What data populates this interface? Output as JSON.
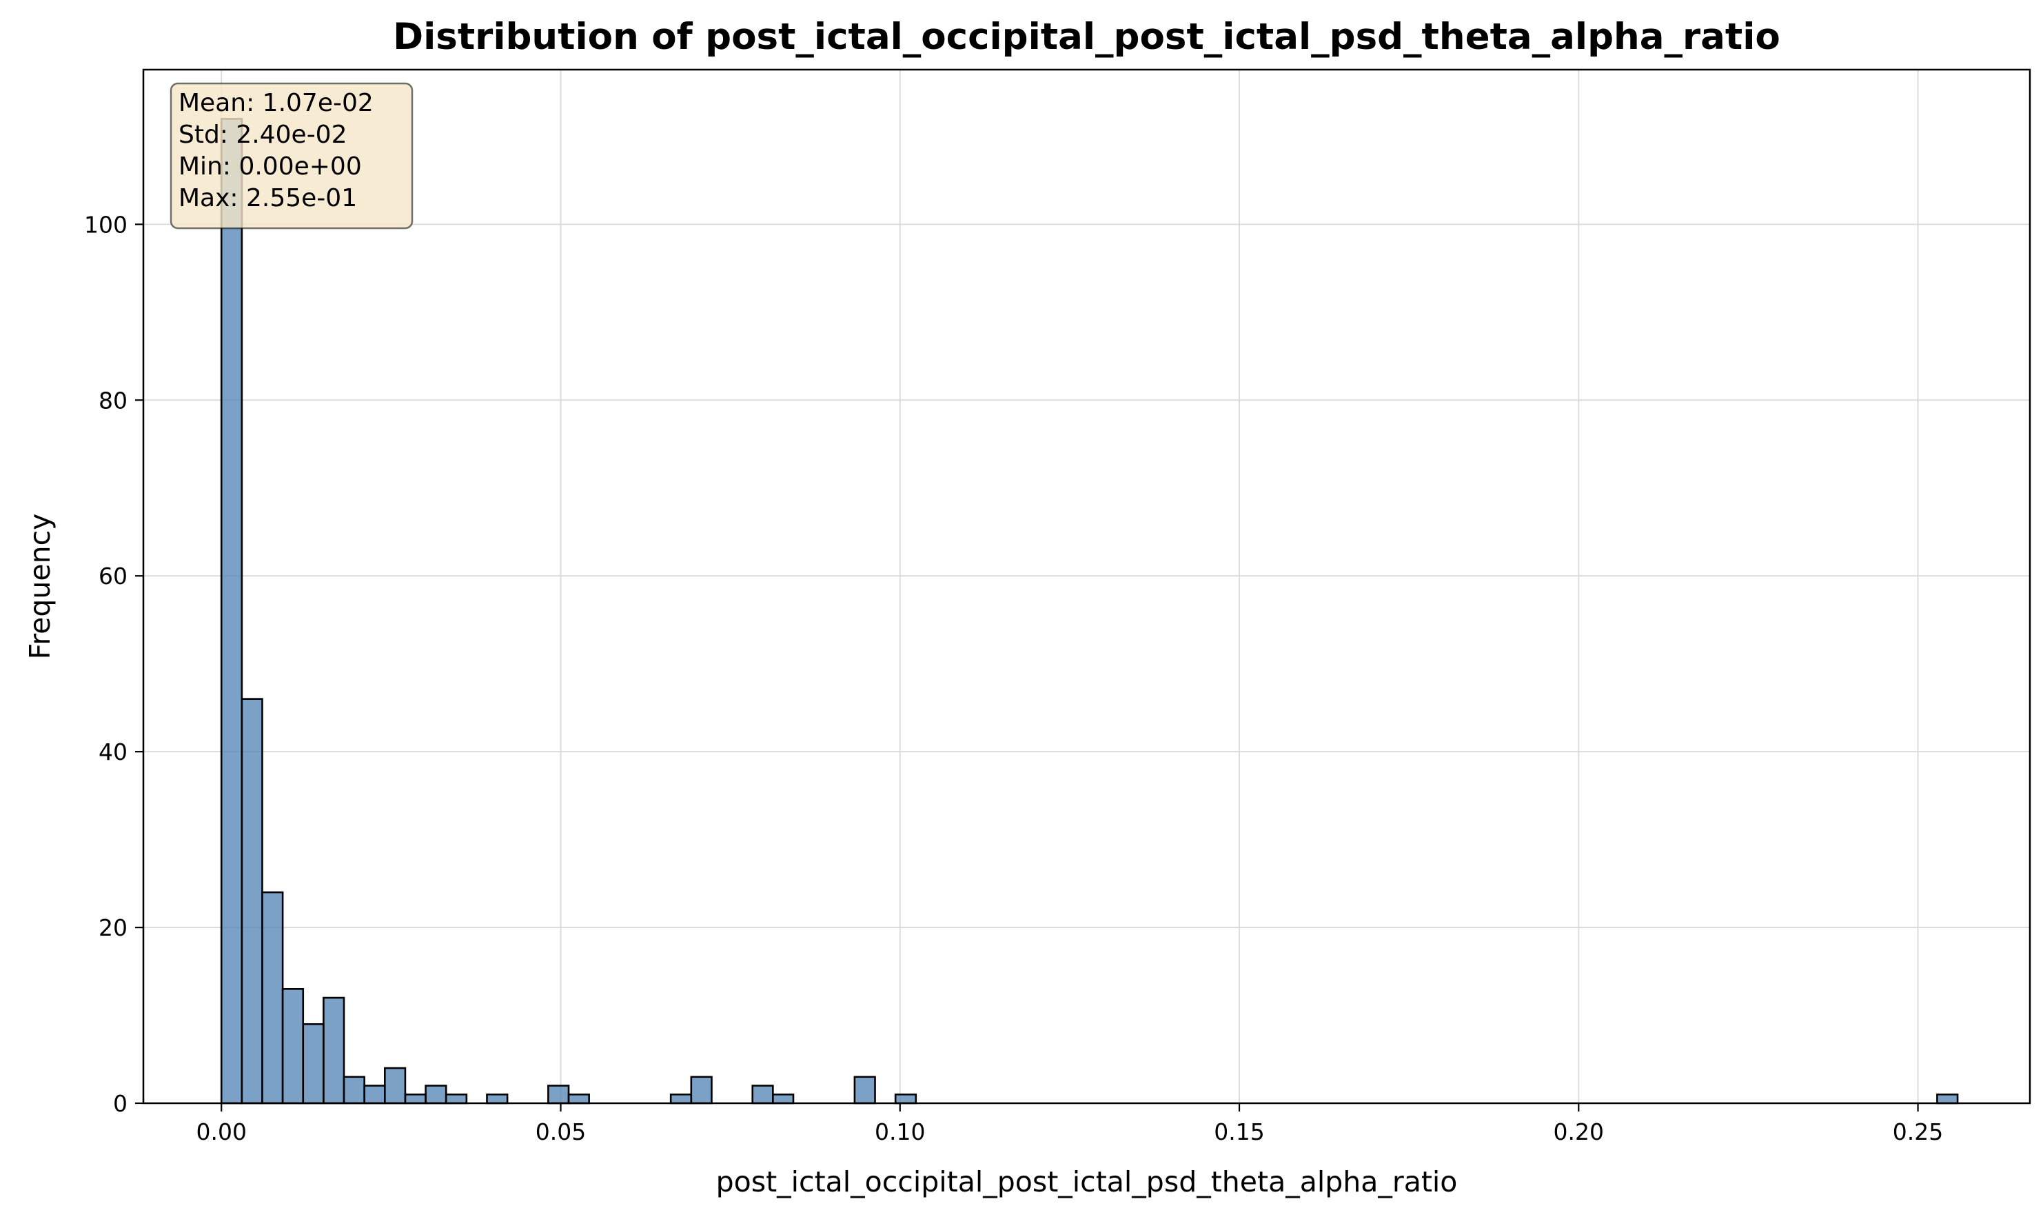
{
  "chart_data": {
    "type": "bar",
    "title": "Distribution of post_ictal_occipital_post_ictal_psd_theta_alpha_ratio",
    "xlabel": "post_ictal_occipital_post_ictal_psd_theta_alpha_ratio",
    "ylabel": "Frequency",
    "xlim": [
      -0.0115,
      0.2665
    ],
    "ylim": [
      0,
      117.6
    ],
    "xticks": [
      0.0,
      0.05,
      0.1,
      0.15,
      0.2,
      0.25
    ],
    "xtick_labels": [
      "0.00",
      "0.05",
      "0.10",
      "0.15",
      "0.20",
      "0.25"
    ],
    "yticks": [
      0,
      20,
      40,
      60,
      80,
      100
    ],
    "ytick_labels": [
      "0",
      "20",
      "40",
      "60",
      "80",
      "100"
    ],
    "grid": true,
    "bin_width": 0.00301,
    "bins": [
      {
        "x": 0.0,
        "count": 112
      },
      {
        "x": 0.00301,
        "count": 46
      },
      {
        "x": 0.00602,
        "count": 24
      },
      {
        "x": 0.00903,
        "count": 13
      },
      {
        "x": 0.01204,
        "count": 9
      },
      {
        "x": 0.01505,
        "count": 12
      },
      {
        "x": 0.01806,
        "count": 3
      },
      {
        "x": 0.02107,
        "count": 2
      },
      {
        "x": 0.02408,
        "count": 4
      },
      {
        "x": 0.02709,
        "count": 1
      },
      {
        "x": 0.0301,
        "count": 2
      },
      {
        "x": 0.03311,
        "count": 1
      },
      {
        "x": 0.03913,
        "count": 1
      },
      {
        "x": 0.04816,
        "count": 2
      },
      {
        "x": 0.05117,
        "count": 1
      },
      {
        "x": 0.06622,
        "count": 1
      },
      {
        "x": 0.06923,
        "count": 3
      },
      {
        "x": 0.07826,
        "count": 2
      },
      {
        "x": 0.08127,
        "count": 1
      },
      {
        "x": 0.09331,
        "count": 3
      },
      {
        "x": 0.09933,
        "count": 1
      },
      {
        "x": 0.25283,
        "count": 1
      }
    ],
    "bar_color": "#4f81b4",
    "edge_color": "#000000",
    "stats": [
      "Mean: 1.07e-02",
      "Std: 2.40e-02",
      "Min: 0.00e+00",
      "Max: 2.55e-01"
    ],
    "stats_box_fill": "#f5e6c8"
  }
}
